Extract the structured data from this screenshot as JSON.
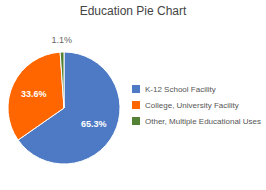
{
  "chart_data": {
    "type": "pie",
    "title": "Education Pie Chart",
    "categories": [
      "K-12 School Facility",
      "College, University Facility",
      "Other, Multiple Educational Uses"
    ],
    "values": [
      65.3,
      33.6,
      1.1
    ],
    "colors": [
      "#4e79c4",
      "#FF6600",
      "#548235"
    ],
    "data_labels": true,
    "value_labels": [
      "65.3%",
      "33.6%",
      "1.1%"
    ],
    "legend": "right"
  }
}
